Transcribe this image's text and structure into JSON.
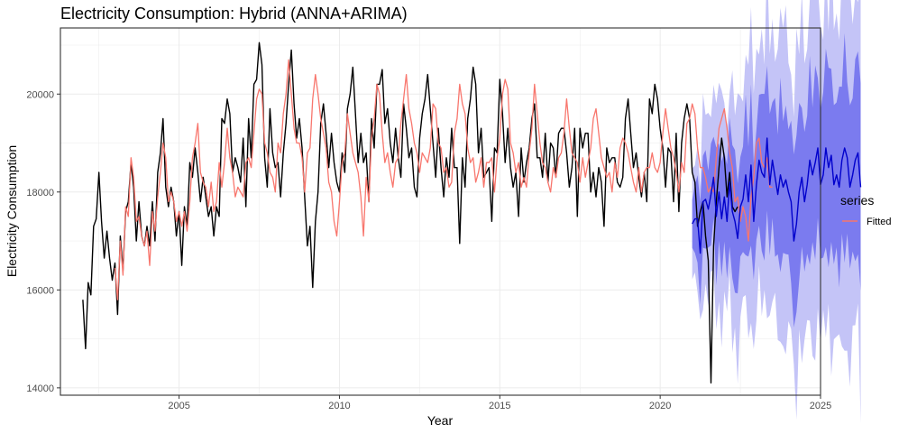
{
  "chart_data": {
    "type": "line",
    "title": "Electricity Consumption: Hybrid (ANNA+ARIMA)",
    "xlabel": "Year",
    "ylabel": "Electricity Consumption",
    "xlim": [
      2001.3,
      2025.0
    ],
    "ylim": [
      13850,
      21350
    ],
    "x_ticks": [
      2005,
      2010,
      2015,
      2020,
      2025
    ],
    "y_ticks": [
      14000,
      16000,
      18000,
      20000
    ],
    "grid": true,
    "legend": {
      "title": "series",
      "position": "right",
      "entries": [
        {
          "label": "Fitted",
          "color": "#f8766d"
        }
      ]
    },
    "colors": {
      "actual": "#000000",
      "fitted": "#f8766d",
      "forecast": "#0000cc",
      "band80": "#7b7bef",
      "band95": "#c4c4f7"
    },
    "actual": {
      "start": 2002.0,
      "step": 0.083333,
      "values": [
        15800,
        14800,
        16150,
        15900,
        17300,
        17450,
        18400,
        17400,
        16650,
        17200,
        16650,
        16200,
        16550,
        15500,
        17100,
        16400,
        17600,
        17800,
        18600,
        18100,
        17000,
        17800,
        17100,
        16900,
        17300,
        16900,
        17800,
        17000,
        18400,
        18800,
        19500,
        18100,
        17700,
        18100,
        17800,
        17100,
        17600,
        16500,
        17700,
        17300,
        18600,
        18300,
        18900,
        18400,
        17800,
        18300,
        17900,
        17500,
        17700,
        17100,
        17700,
        17500,
        19500,
        19400,
        19900,
        19600,
        18400,
        18700,
        18500,
        18200,
        19100,
        17700,
        19500,
        18700,
        20200,
        20300,
        21050,
        20600,
        18700,
        18100,
        19700,
        18800,
        18500,
        18600,
        17900,
        18800,
        19400,
        20200,
        20900,
        19800,
        19100,
        19500,
        18900,
        17900,
        16900,
        17300,
        16050,
        17400,
        18000,
        19400,
        19800,
        19200,
        18500,
        19200,
        18600,
        18200,
        18000,
        18800,
        18400,
        19700,
        20000,
        20550,
        19600,
        18600,
        19200,
        18600,
        18800,
        17800,
        19500,
        18900,
        20200,
        20200,
        20500,
        19400,
        19700,
        19000,
        18600,
        19300,
        18700,
        18300,
        19800,
        19300,
        18700,
        18900,
        18100,
        17900,
        19100,
        19600,
        19900,
        20400,
        19700,
        19000,
        18300,
        19300,
        18500,
        17900,
        18700,
        18300,
        19300,
        18500,
        18500,
        16950,
        18700,
        18100,
        19500,
        19900,
        20550,
        20200,
        18800,
        19300,
        18300,
        18400,
        18500,
        17400,
        18900,
        18800,
        20300,
        19600,
        18600,
        19300,
        18500,
        18100,
        18400,
        17500,
        18900,
        18200,
        18600,
        18900,
        19500,
        19800,
        18700,
        18700,
        18300,
        19200,
        18200,
        19000,
        18900,
        18300,
        19200,
        19300,
        19300,
        18800,
        18100,
        18500,
        19300,
        17500,
        19300,
        18900,
        19200,
        19200,
        18000,
        18400,
        17900,
        18500,
        18200,
        17300,
        18900,
        18600,
        18700,
        18700,
        18200,
        18100,
        18300,
        19500,
        19900,
        19200,
        18500,
        18800,
        18300,
        17900,
        18400,
        17800,
        19900,
        19600,
        20200,
        19900,
        19300,
        18900,
        18100,
        18900,
        18800,
        17800,
        19200,
        17600,
        19000,
        19500,
        19800,
        19500,
        18400,
        18200,
        17300,
        17600,
        17800,
        17100,
        16600,
        14100,
        16900,
        17800,
        18500,
        19100,
        18700,
        17900,
        18400,
        17700,
        17600,
        17700
      ]
    },
    "fitted": {
      "start": 2003.0,
      "step": 0.083333,
      "values": [
        16450,
        15800,
        17000,
        16300,
        17700,
        17500,
        18700,
        18300,
        17400,
        17500,
        17100,
        16900,
        17200,
        16500,
        17600,
        17200,
        17900,
        18400,
        19000,
        18700,
        17800,
        18000,
        17800,
        17400,
        17600,
        17300,
        17600,
        17200,
        17800,
        18700,
        19000,
        19400,
        18400,
        18200,
        18100,
        17700,
        18200,
        17600,
        17800,
        18600,
        18100,
        18600,
        19300,
        18700,
        18400,
        17900,
        18100,
        18000,
        17900,
        18600,
        18700,
        18500,
        19200,
        19900,
        20100,
        20000,
        19000,
        18800,
        18400,
        18300,
        18000,
        19000,
        18800,
        19600,
        20000,
        20700,
        20000,
        19300,
        19000,
        19000,
        18700,
        18000,
        18800,
        18900,
        19900,
        20400,
        20000,
        19500,
        19200,
        18900,
        18200,
        18000,
        17400,
        17100,
        17800,
        18600,
        18800,
        19600,
        19200,
        18800,
        18600,
        18400,
        17900,
        17100,
        18300,
        17800,
        19100,
        19500,
        20200,
        20000,
        19200,
        18600,
        18800,
        18400,
        18100,
        18600,
        18700,
        19400,
        19900,
        20400,
        19700,
        19400,
        19000,
        18800,
        18400,
        18800,
        18700,
        18600,
        18900,
        19800,
        19700,
        19000,
        18900,
        18400,
        18500,
        18100,
        18200,
        19200,
        19500,
        20200,
        19800,
        19600,
        18900,
        18600,
        18700,
        18200,
        18400,
        18700,
        18100,
        18600,
        18600,
        18700,
        18000,
        18700,
        19100,
        20000,
        20300,
        20100,
        19000,
        18800,
        18400,
        18600,
        18100,
        18300,
        18100,
        18800,
        19300,
        20200,
        19600,
        19000,
        18600,
        18500,
        18200,
        18000,
        18500,
        18300,
        18700,
        18800,
        19200,
        19900,
        19300,
        18800,
        18700,
        18600,
        18200,
        18700,
        18300,
        18600,
        18900,
        19500,
        19700,
        19200,
        18700,
        18500,
        18300,
        18400,
        18000,
        18600,
        18300,
        18900,
        19100,
        19000,
        18800,
        18500,
        18200,
        18000,
        18500,
        18000,
        18400,
        18500,
        18500,
        18800,
        18500,
        18400,
        18600,
        19200,
        19700,
        19300,
        18900,
        18700,
        18400,
        18000,
        18600,
        18400,
        19400,
        19500,
        19800,
        19600,
        18900,
        18500,
        18500,
        18300,
        18000,
        18100,
        18000,
        18700,
        19300,
        19500,
        19700,
        19300,
        18800,
        18500,
        17800,
        17900,
        17400,
        17700,
        17500,
        17000,
        17900,
        18300,
        19000,
        19100,
        18600,
        18500,
        18700,
        18100,
        18100
      ]
    },
    "forecast": {
      "start": 2021.0,
      "step": 0.083333,
      "values": [
        17350,
        17450,
        17450,
        16750,
        17800,
        17850,
        17650,
        17950,
        18300,
        17500,
        18000,
        17450,
        17900,
        17400,
        18200,
        17600,
        17400,
        17050,
        17700,
        17850,
        18350,
        17800,
        18550,
        17400,
        18150,
        18650,
        18400,
        18300,
        19100,
        18150,
        18650,
        18300,
        17950,
        18350,
        18100,
        18250,
        18000,
        17800,
        17000,
        17350,
        18000,
        18300,
        17800,
        18150,
        18650,
        18350,
        18600,
        18900,
        18150,
        18350,
        18900,
        18500,
        18750,
        18150,
        18350,
        18100,
        18650,
        18900,
        18700,
        18100,
        18350,
        18650,
        18800,
        18100
      ]
    }
  }
}
